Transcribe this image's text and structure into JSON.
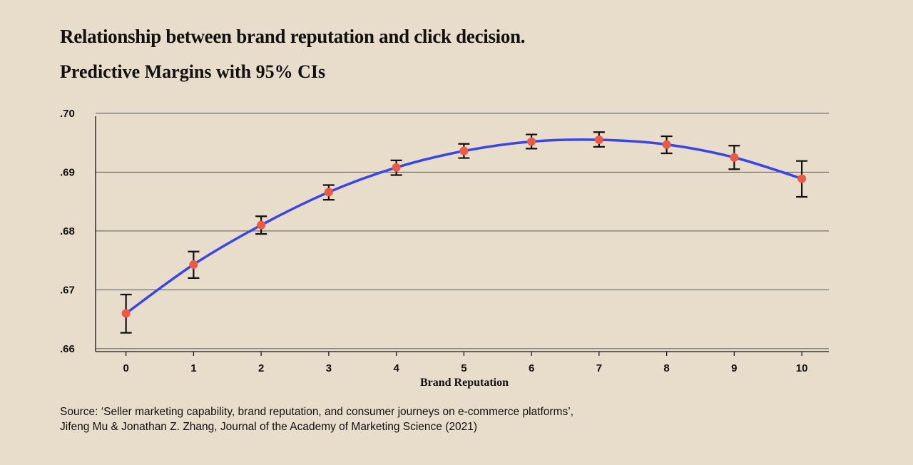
{
  "colors": {
    "background": "#e8dccb",
    "line": "#3a45e6",
    "point": "#ec5a45",
    "errorbar": "#111111",
    "grid": "#555555"
  },
  "chart_data": {
    "type": "line",
    "title": "Relationship between brand reputation and click decision.",
    "subtitle": "Predictive Margins with 95% CIs",
    "xlabel": "Brand Reputation",
    "ylabel": "",
    "x": [
      0,
      1,
      2,
      3,
      4,
      5,
      6,
      7,
      8,
      9,
      10
    ],
    "x_tick_labels": [
      "0",
      "1",
      "2",
      "3",
      "4",
      "5",
      "6",
      "7",
      "8",
      "9",
      "10"
    ],
    "y_ticks": [
      0.66,
      0.67,
      0.68,
      0.69,
      0.7
    ],
    "y_tick_labels": [
      ".66",
      ".67",
      ".68",
      ".69",
      ".70"
    ],
    "ylim": [
      0.6595,
      0.6995
    ],
    "xlim": [
      -0.45,
      10.4
    ],
    "grid": true,
    "series": [
      {
        "y": [
          0.666,
          0.6743,
          0.681,
          0.6866,
          0.6908,
          0.6936,
          0.6952,
          0.6955,
          0.6947,
          0.6925,
          0.6889
        ],
        "ci_low": [
          0.6627,
          0.672,
          0.6795,
          0.6853,
          0.6895,
          0.6924,
          0.694,
          0.6943,
          0.6932,
          0.6905,
          0.6858
        ],
        "ci_high": [
          0.6692,
          0.6765,
          0.6825,
          0.6878,
          0.692,
          0.6948,
          0.6964,
          0.6968,
          0.6961,
          0.6945,
          0.6919
        ]
      }
    ]
  },
  "source": {
    "line1": "Source: ‘Seller marketing capability, brand reputation, and consumer journeys on e-commerce platforms’,",
    "line2": "Jifeng Mu & Jonathan Z. Zhang, Journal of the Academy of Marketing Science (2021)"
  }
}
